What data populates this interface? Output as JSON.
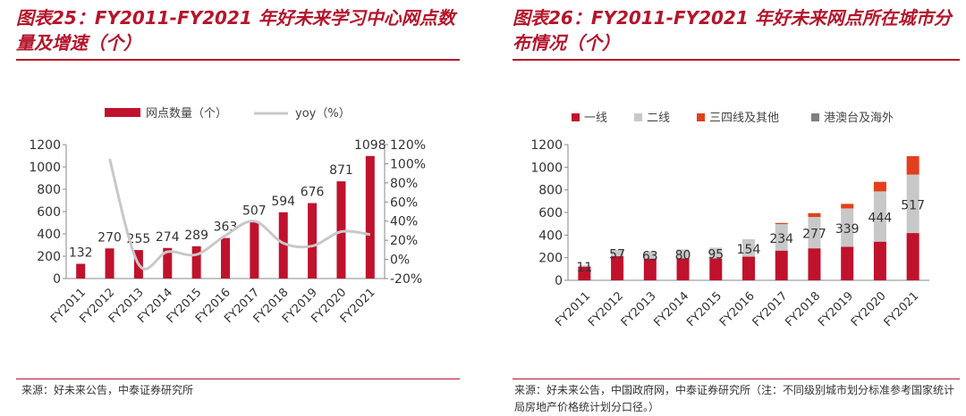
{
  "chart_data": [
    {
      "type": "bar",
      "title": "图表25：FY2011-FY2021 年好未来学习中心网点数量及增速（个）",
      "categories": [
        "FY2011",
        "FY2012",
        "FY2013",
        "FY2014",
        "FY2015",
        "FY2016",
        "FY2017",
        "FY2018",
        "FY2019",
        "FY2020",
        "FY2021"
      ],
      "series": [
        {
          "name": "网点数量（个）",
          "type": "bar",
          "axis": "left",
          "color": "#c0122d",
          "values": [
            132,
            270,
            255,
            274,
            289,
            363,
            507,
            594,
            676,
            871,
            1098
          ]
        },
        {
          "name": "yoy（%）",
          "type": "line",
          "axis": "right",
          "color": "#c8c8c8",
          "values": [
            null,
            105,
            -5,
            8,
            5,
            25,
            40,
            17,
            14,
            29,
            26
          ]
        }
      ],
      "ylim_left": [
        0,
        1200
      ],
      "yticks_left": [
        "0",
        "200",
        "400",
        "600",
        "800",
        "1000",
        "1200"
      ],
      "ylim_right": [
        -20,
        120
      ],
      "yticks_right": [
        "-20%",
        "0%",
        "20%",
        "40%",
        "60%",
        "80%",
        "100%",
        "120%"
      ],
      "legend_position": "top",
      "source": "来源：好未来公告，中泰证券研究所"
    },
    {
      "type": "bar",
      "stacked": true,
      "title": "图表26：FY2011-FY2021 年好未来网点所在城市分布情况（个）",
      "categories": [
        "FY2011",
        "FY2012",
        "FY2013",
        "FY2014",
        "FY2015",
        "FY2016",
        "FY2017",
        "FY2018",
        "FY2019",
        "FY2020",
        "FY2021"
      ],
      "series": [
        {
          "name": "一线",
          "color": "#c0122d",
          "values": [
            121,
            213,
            192,
            194,
            194,
            209,
            263,
            283,
            297,
            342,
            418
          ]
        },
        {
          "name": "二线",
          "color": "#c8c8c8",
          "values": [
            11,
            57,
            63,
            80,
            95,
            154,
            234,
            277,
            339,
            444,
            517
          ]
        },
        {
          "name": "三四线及其他",
          "color": "#e2401c",
          "values": [
            0,
            0,
            0,
            0,
            0,
            0,
            10,
            34,
            40,
            85,
            163
          ]
        },
        {
          "name": "港澳台及海外",
          "color": "#7f7f7f",
          "values": [
            0,
            0,
            0,
            0,
            0,
            0,
            0,
            0,
            0,
            0,
            0
          ]
        }
      ],
      "data_label_series": "二线",
      "ylim": [
        0,
        1200
      ],
      "yticks": [
        "0",
        "200",
        "400",
        "600",
        "800",
        "1000",
        "1200"
      ],
      "legend_position": "top",
      "source": "来源：好未来公告，中国政府网，中泰证券研究所（注：不同级别城市划分标准参考国家统计局房地产价格统计划分口径。）"
    }
  ]
}
